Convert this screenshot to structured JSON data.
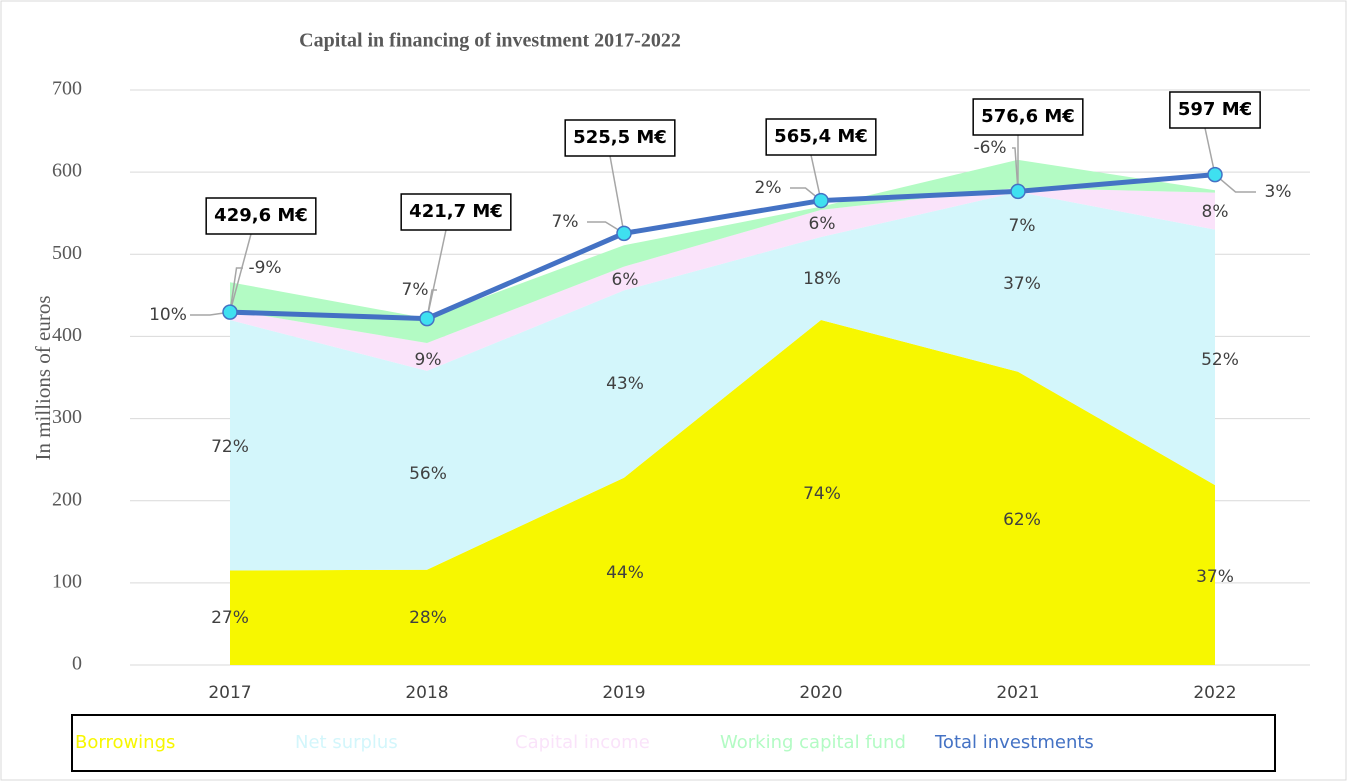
{
  "chart_data": {
    "type": "stacked-area-line",
    "title": "Capital in financing of investment 2017-2022",
    "y_axis_label": "In millions of euros",
    "categories": [
      "2017",
      "2018",
      "2019",
      "2020",
      "2021",
      "2022"
    ],
    "ylim": [
      0,
      700
    ],
    "yticks": [
      0,
      100,
      200,
      300,
      400,
      500,
      600,
      700
    ],
    "grid": true,
    "series": [
      {
        "name": "Borrowings",
        "color": "#f7f700",
        "values": [
          115,
          116,
          228,
          420,
          357,
          219
        ],
        "labels": [
          "27%",
          "28%",
          "44%",
          "74%",
          "62%",
          "37%"
        ]
      },
      {
        "name": "Net surplus",
        "color": "#d3f6fb",
        "values": [
          305,
          242,
          228,
          101,
          219,
          311
        ],
        "labels": [
          "72%",
          "56%",
          "43%",
          "18%",
          "37%",
          "52%"
        ]
      },
      {
        "name": "Capital income",
        "color": "#fae3fa",
        "values": [
          12,
          34,
          29,
          33,
          5,
          45
        ],
        "labels": [
          "10%",
          "9%",
          "6%",
          "6%",
          "7%",
          "8%"
        ]
      },
      {
        "name": "Working capital fund",
        "color": "#b3fbc4",
        "values": [
          34,
          30,
          26,
          4,
          34,
          3
        ],
        "labels": [
          "-9%",
          "7%",
          "7%",
          "2%",
          "-6%",
          "3%"
        ]
      },
      {
        "name": "Total investments",
        "color": "#4472c4",
        "type": "line",
        "values": [
          429.6,
          421.7,
          525.5,
          565.4,
          576.6,
          597
        ],
        "value_labels": [
          "429,6 M€",
          "421,7 M€",
          "525,5 M€",
          "565,4 M€",
          "576,6 M€",
          "597 M€"
        ]
      }
    ]
  }
}
